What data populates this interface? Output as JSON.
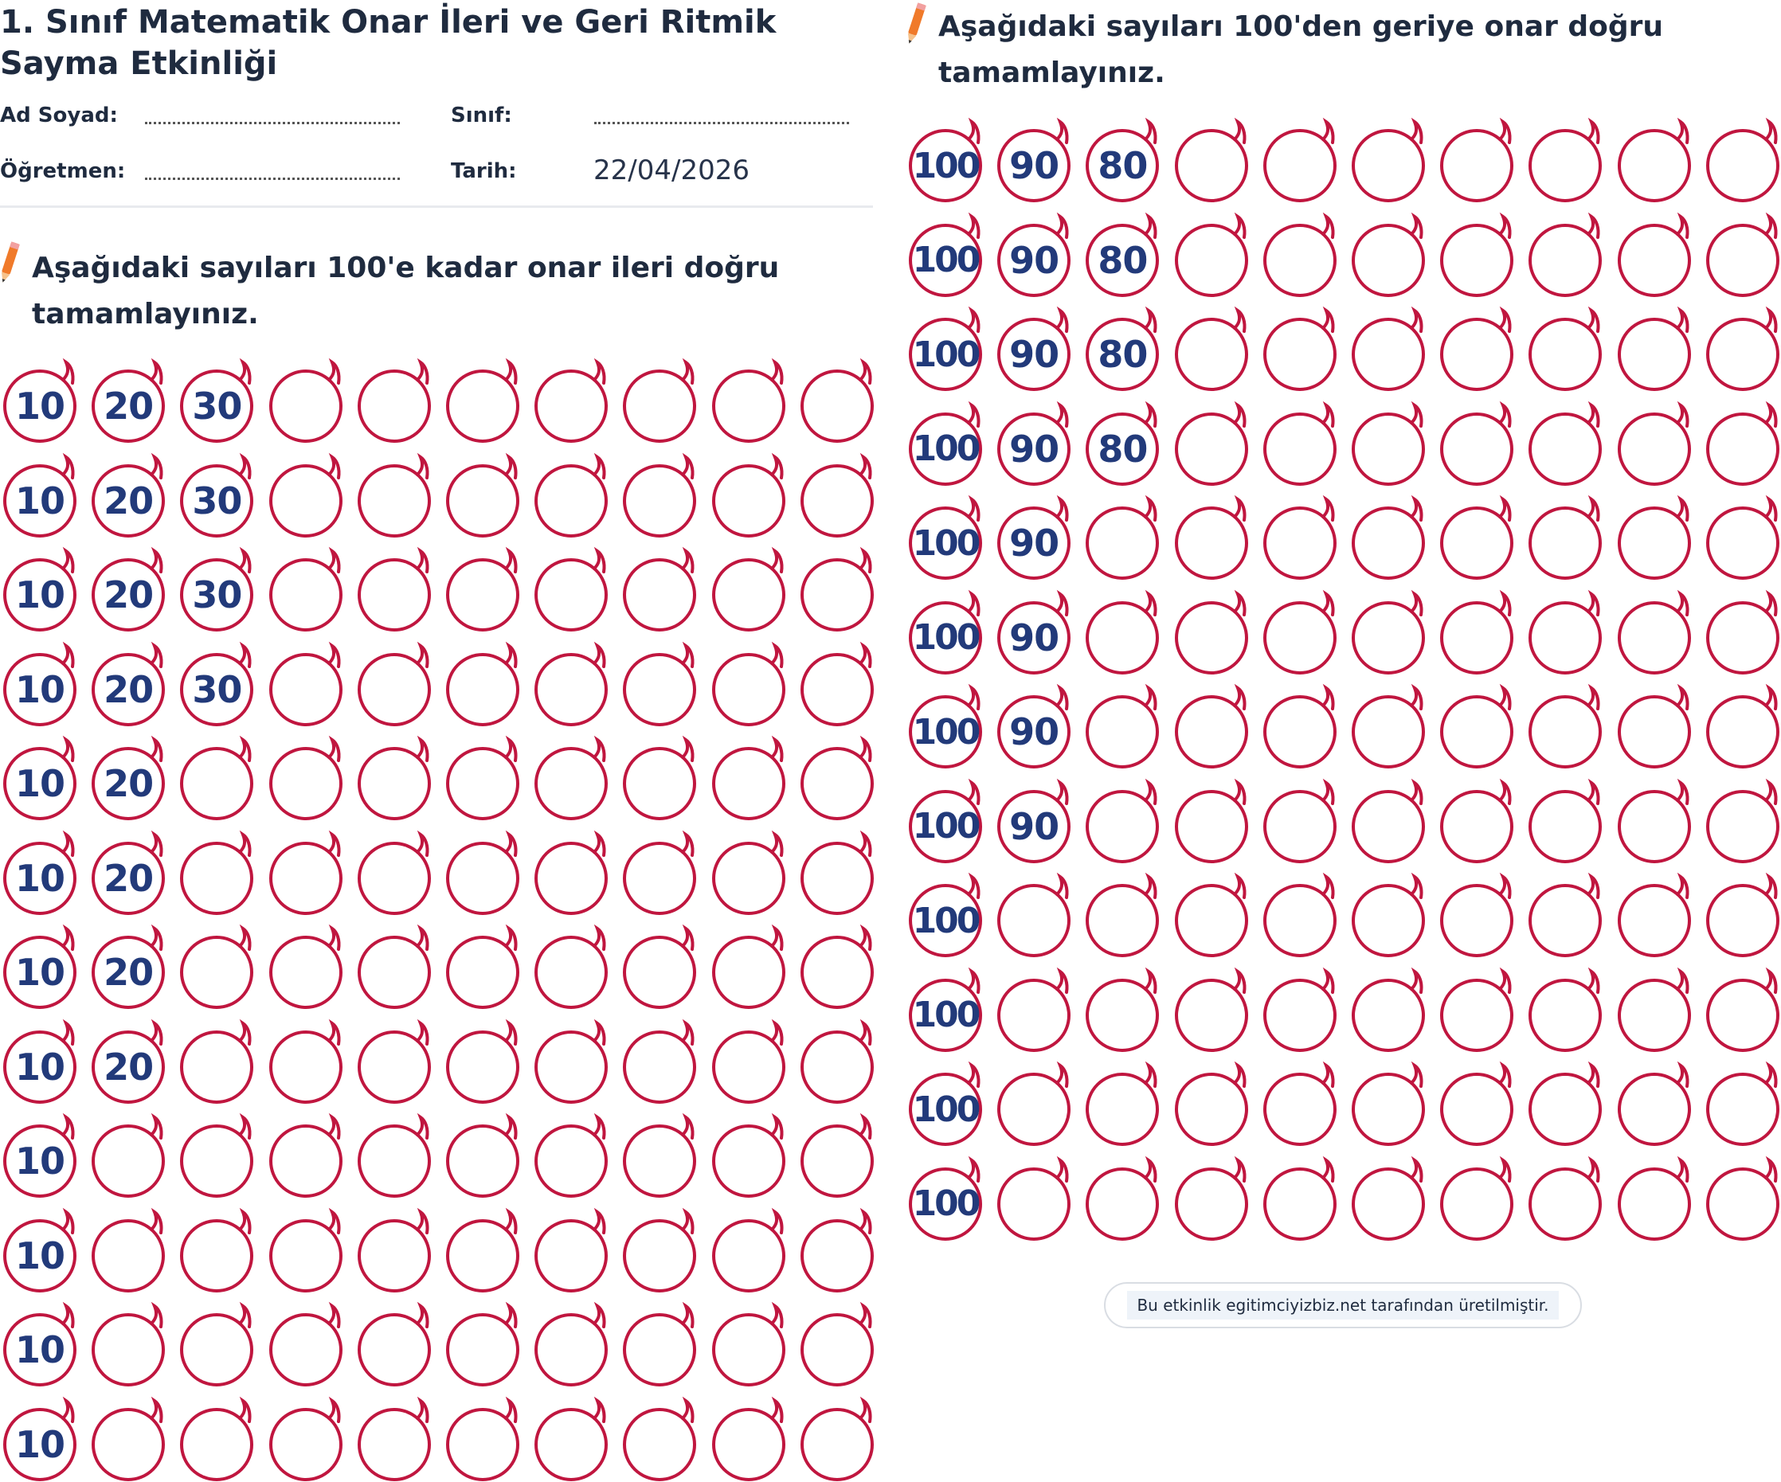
{
  "header": {
    "title": "1. Sınıf Matematik Onar İleri ve Geri Ritmik Sayma Etkinliği",
    "name_label": "Ad Soyad:",
    "class_label": "Sınıf:",
    "teacher_label": "Öğretmen:",
    "date_label": "Tarih:",
    "date_value": "22/04/2026"
  },
  "colors": {
    "circle": "#c0163f",
    "number": "#223a7a",
    "pencil": "#f07a2a"
  },
  "icons": {
    "instruction": "pencil-icon",
    "cell": "circle-loop-icon"
  },
  "forward": {
    "instruction": "Aşağıdaki sayıları 100'e kadar onar ileri doğru tamamlayınız.",
    "columns": 10,
    "rows": [
      [
        "10",
        "20",
        "30",
        "",
        "",
        "",
        "",
        "",
        "",
        ""
      ],
      [
        "10",
        "20",
        "30",
        "",
        "",
        "",
        "",
        "",
        "",
        ""
      ],
      [
        "10",
        "20",
        "30",
        "",
        "",
        "",
        "",
        "",
        "",
        ""
      ],
      [
        "10",
        "20",
        "30",
        "",
        "",
        "",
        "",
        "",
        "",
        ""
      ],
      [
        "10",
        "20",
        "",
        "",
        "",
        "",
        "",
        "",
        "",
        ""
      ],
      [
        "10",
        "20",
        "",
        "",
        "",
        "",
        "",
        "",
        "",
        ""
      ],
      [
        "10",
        "20",
        "",
        "",
        "",
        "",
        "",
        "",
        "",
        ""
      ],
      [
        "10",
        "20",
        "",
        "",
        "",
        "",
        "",
        "",
        "",
        ""
      ],
      [
        "10",
        "",
        "",
        "",
        "",
        "",
        "",
        "",
        "",
        ""
      ],
      [
        "10",
        "",
        "",
        "",
        "",
        "",
        "",
        "",
        "",
        ""
      ],
      [
        "10",
        "",
        "",
        "",
        "",
        "",
        "",
        "",
        "",
        ""
      ],
      [
        "10",
        "",
        "",
        "",
        "",
        "",
        "",
        "",
        "",
        ""
      ]
    ]
  },
  "backward": {
    "instruction": "Aşağıdaki sayıları 100'den geriye onar doğru tamamlayınız.",
    "columns": 10,
    "rows": [
      [
        "100",
        "90",
        "80",
        "",
        "",
        "",
        "",
        "",
        "",
        ""
      ],
      [
        "100",
        "90",
        "80",
        "",
        "",
        "",
        "",
        "",
        "",
        ""
      ],
      [
        "100",
        "90",
        "80",
        "",
        "",
        "",
        "",
        "",
        "",
        ""
      ],
      [
        "100",
        "90",
        "80",
        "",
        "",
        "",
        "",
        "",
        "",
        ""
      ],
      [
        "100",
        "90",
        "",
        "",
        "",
        "",
        "",
        "",
        "",
        ""
      ],
      [
        "100",
        "90",
        "",
        "",
        "",
        "",
        "",
        "",
        "",
        ""
      ],
      [
        "100",
        "90",
        "",
        "",
        "",
        "",
        "",
        "",
        "",
        ""
      ],
      [
        "100",
        "90",
        "",
        "",
        "",
        "",
        "",
        "",
        "",
        ""
      ],
      [
        "100",
        "",
        "",
        "",
        "",
        "",
        "",
        "",
        "",
        ""
      ],
      [
        "100",
        "",
        "",
        "",
        "",
        "",
        "",
        "",
        "",
        ""
      ],
      [
        "100",
        "",
        "",
        "",
        "",
        "",
        "",
        "",
        "",
        ""
      ],
      [
        "100",
        "",
        "",
        "",
        "",
        "",
        "",
        "",
        "",
        ""
      ]
    ]
  },
  "footer": {
    "text": "Bu etkinlik egitimciyizbiz.net tarafından üretilmiştir."
  }
}
